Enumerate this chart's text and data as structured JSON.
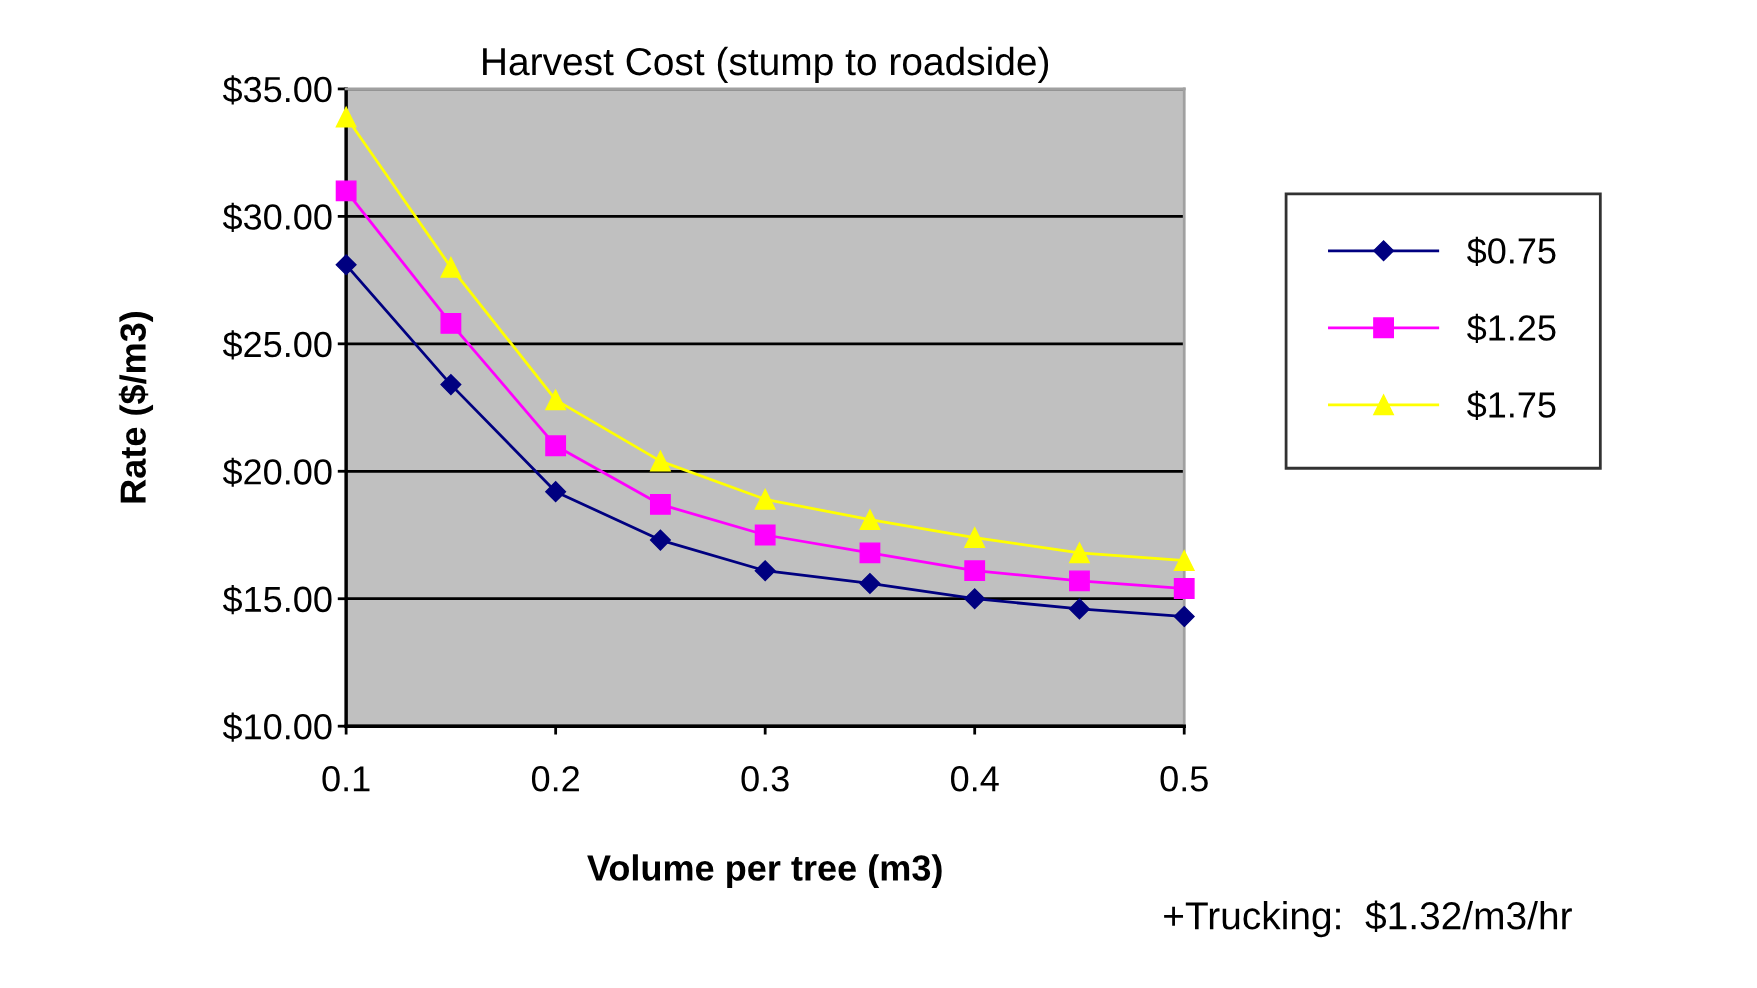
{
  "chart_data": {
    "type": "line",
    "title": "Harvest Cost (stump to roadside)",
    "xlabel": "Volume per tree (m3)",
    "ylabel": "Rate ($/m3)",
    "x": [
      0.1,
      0.15,
      0.2,
      0.25,
      0.3,
      0.35,
      0.4,
      0.45,
      0.5
    ],
    "series": [
      {
        "name": "$0.75",
        "color": "#000080",
        "marker": "diamond",
        "values": [
          28.1,
          23.4,
          19.2,
          17.3,
          16.1,
          15.6,
          15.0,
          14.6,
          14.3
        ]
      },
      {
        "name": "$1.25",
        "color": "#ff00ff",
        "marker": "square",
        "values": [
          31.0,
          25.8,
          21.0,
          18.7,
          17.5,
          16.8,
          16.1,
          15.7,
          15.4
        ]
      },
      {
        "name": "$1.75",
        "color": "#ffff00",
        "marker": "triangle",
        "values": [
          33.9,
          28.0,
          22.8,
          20.4,
          18.9,
          18.1,
          17.4,
          16.8,
          16.5
        ]
      }
    ],
    "xlim": [
      0.1,
      0.5
    ],
    "xticks": [
      0.1,
      0.2,
      0.3,
      0.4,
      0.5
    ],
    "ylim": [
      10,
      35
    ],
    "yticks": [
      {
        "value": 10,
        "label": "$10.00"
      },
      {
        "value": 15,
        "label": "$15.00"
      },
      {
        "value": 20,
        "label": "$20.00"
      },
      {
        "value": 25,
        "label": "$25.00"
      },
      {
        "value": 30,
        "label": "$30.00"
      },
      {
        "value": 35,
        "label": "$35.00"
      }
    ],
    "grid": "y",
    "legend": "right",
    "line_style": "solid",
    "annotations": [
      "+Trucking:  $1.32/m3/hr"
    ]
  }
}
